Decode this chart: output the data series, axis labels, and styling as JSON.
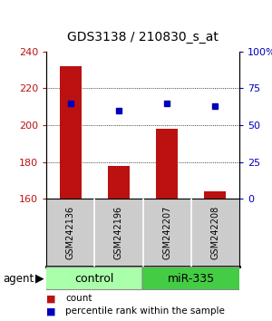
{
  "title": "GDS3138 / 210830_s_at",
  "samples": [
    "GSM242136",
    "GSM242196",
    "GSM242207",
    "GSM242208"
  ],
  "counts": [
    232,
    178,
    198,
    164
  ],
  "percentiles": [
    65,
    60,
    65,
    63
  ],
  "ylim_left": [
    160,
    240
  ],
  "ylim_right": [
    0,
    100
  ],
  "yticks_left": [
    160,
    180,
    200,
    220,
    240
  ],
  "yticks_right": [
    0,
    25,
    50,
    75,
    100
  ],
  "ytick_labels_right": [
    "0",
    "25",
    "50",
    "75",
    "100%"
  ],
  "bar_color": "#BB1111",
  "dot_color": "#0000BB",
  "bar_width": 0.45,
  "groups": [
    {
      "label": "control",
      "indices": [
        0,
        1
      ],
      "color": "#aaffaa"
    },
    {
      "label": "miR-335",
      "indices": [
        2,
        3
      ],
      "color": "#44cc44"
    }
  ],
  "group_label": "agent",
  "legend_count_label": "count",
  "legend_pct_label": "percentile rank within the sample",
  "background_color": "#ffffff",
  "sample_box_color": "#cccccc",
  "title_fontsize": 10,
  "tick_fontsize": 8,
  "sample_fontsize": 7,
  "group_fontsize": 9,
  "legend_fontsize": 7.5
}
